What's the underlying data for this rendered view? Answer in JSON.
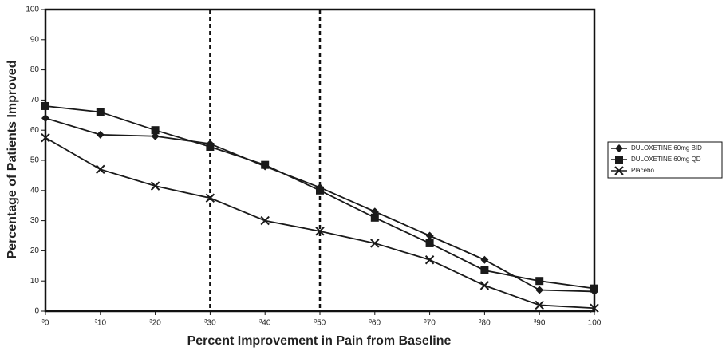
{
  "chart_data": {
    "type": "line",
    "xlabel": "Percent Improvement in Pain from Baseline",
    "ylabel": "Percentage of Patients Improved",
    "categories": [
      "³0",
      "³10",
      "³20",
      "³30",
      "³40",
      "³50",
      "³60",
      "³70",
      "³80",
      "³90",
      "100"
    ],
    "series": [
      {
        "name": "DULOXETINE 60mg BID",
        "color": "#1a1a1a",
        "marker": "diamond",
        "values": [
          64,
          58.5,
          58,
          55.5,
          48,
          41,
          33,
          25,
          17,
          7,
          6.5
        ]
      },
      {
        "name": "DULOXETINE 60mg QD",
        "color": "#1a1a1a",
        "marker": "square",
        "values": [
          68,
          66,
          60,
          54.5,
          48.5,
          40,
          31,
          22.5,
          13.5,
          10,
          7.5
        ]
      },
      {
        "name": "Placebo",
        "color": "#1a1a1a",
        "marker": "x",
        "values": [
          57.5,
          47,
          41.5,
          37.5,
          30,
          26.5,
          22.5,
          17,
          8.5,
          2,
          1
        ]
      }
    ],
    "vlines": [
      "³30",
      "³50"
    ],
    "ylim": [
      0,
      100
    ],
    "yticks": [
      0,
      10,
      20,
      30,
      40,
      50,
      60,
      70,
      80,
      90,
      100
    ],
    "legend": "right"
  }
}
